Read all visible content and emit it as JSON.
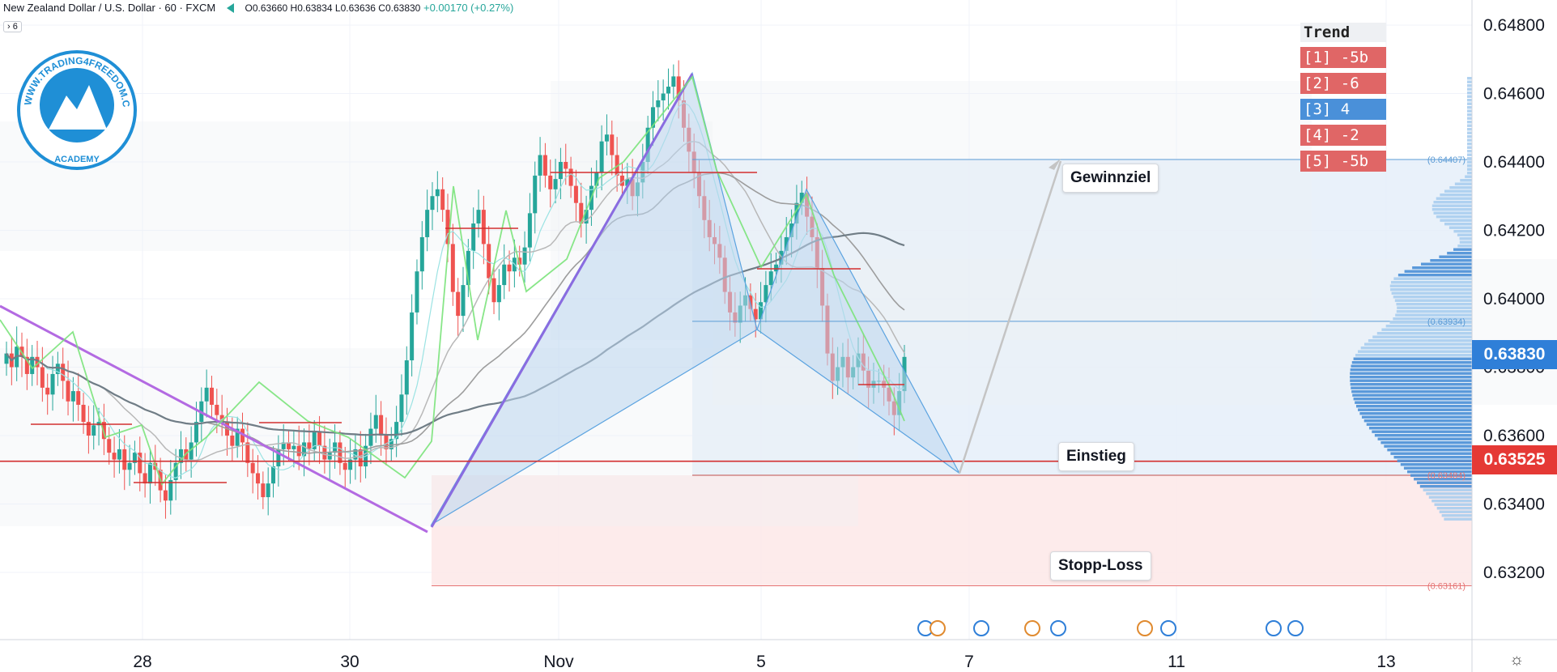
{
  "header": {
    "symbol": "New Zealand Dollar / U.S. Dollar · 60 · FXCM",
    "ohlc": "O0.63660 H0.63834 L0.63636 C0.63830",
    "change": "+0.00170 (+0.27%)",
    "indicator_badge": "› 6"
  },
  "logo": {
    "text": "WWW.TRADING4FREEDOM.COM",
    "sub": "ACADEMY"
  },
  "trend_table": {
    "title": "Trend",
    "rows": [
      {
        "label": "[1] -5b",
        "color": "#e06666"
      },
      {
        "label": "[2] -6",
        "color": "#e06666"
      },
      {
        "label": "[3] 4",
        "color": "#4a90d9"
      },
      {
        "label": "[4] -2",
        "color": "#e06666"
      },
      {
        "label": "[5] -5b",
        "color": "#e06666"
      }
    ]
  },
  "annotations": {
    "target": "Gewinnziel",
    "entry": "Einstieg",
    "stop": "Stopp-Loss"
  },
  "price_badges": {
    "last": "0.63830",
    "entry": "0.63525"
  },
  "colors": {
    "up": "#26a69a",
    "down": "#ef5350",
    "pattern_fill": "#bcd6ef",
    "profit_zone": "#e3eef9",
    "loss_zone": "#fde9e9",
    "entry_line": "#d32f2f",
    "last_badge": "#2f7fd8",
    "entry_badge": "#e53935",
    "zigzag_purple": "#b36ae2",
    "zigzag_green": "#7be37b"
  },
  "chart_data": {
    "type": "candlestick",
    "title": "New Zealand Dollar / U.S. Dollar · 60 · FXCM",
    "x_ticks": [
      "28",
      "30",
      "Nov",
      "5",
      "7",
      "11",
      "13"
    ],
    "y_ticks": [
      "0.64800",
      "0.64600",
      "0.64400",
      "0.64200",
      "0.64000",
      "0.63800",
      "0.63600",
      "0.63400",
      "0.63200"
    ],
    "ylim": [
      0.6305,
      0.6489
    ],
    "levels": {
      "target": 0.64407,
      "pattern_D": 0.63934,
      "entry": 0.63525,
      "entry_zone": 0.63484,
      "stop": 0.63161
    },
    "level_labels": {
      "target": "(0.64407)",
      "pattern_D": "(0.63934)",
      "entry_zone": "(0.63484)",
      "stop": "(0.63161)"
    },
    "harmonic_pattern": {
      "X": 0.6334,
      "A": 0.6466,
      "B": 0.6391,
      "C": 0.6432,
      "D": 0.6349
    },
    "closes": [
      0.6384,
      0.638,
      0.6386,
      0.6383,
      0.6378,
      0.6383,
      0.638,
      0.6374,
      0.6372,
      0.6378,
      0.6381,
      0.6376,
      0.637,
      0.6373,
      0.6369,
      0.6364,
      0.636,
      0.6363,
      0.6364,
      0.6359,
      0.6355,
      0.6353,
      0.6356,
      0.635,
      0.6352,
      0.6355,
      0.6349,
      0.6346,
      0.6352,
      0.635,
      0.6344,
      0.6341,
      0.6347,
      0.6352,
      0.6356,
      0.6353,
      0.6358,
      0.6364,
      0.637,
      0.6374,
      0.6369,
      0.6366,
      0.6364,
      0.636,
      0.6357,
      0.6362,
      0.6358,
      0.6352,
      0.6349,
      0.6346,
      0.6342,
      0.6346,
      0.6351,
      0.6356,
      0.6358,
      0.6356,
      0.6357,
      0.6354,
      0.6358,
      0.6356,
      0.6361,
      0.6357,
      0.6353,
      0.6355,
      0.6358,
      0.6352,
      0.635,
      0.6353,
      0.6356,
      0.6351,
      0.6357,
      0.6362,
      0.6366,
      0.636,
      0.6356,
      0.6359,
      0.6364,
      0.6372,
      0.6382,
      0.6396,
      0.6408,
      0.6418,
      0.6426,
      0.643,
      0.6432,
      0.6426,
      0.6416,
      0.6402,
      0.6395,
      0.6404,
      0.6414,
      0.6422,
      0.6426,
      0.6416,
      0.6406,
      0.6399,
      0.6404,
      0.641,
      0.6408,
      0.6412,
      0.641,
      0.6415,
      0.6425,
      0.6436,
      0.6442,
      0.6436,
      0.6432,
      0.6435,
      0.644,
      0.6438,
      0.6433,
      0.6428,
      0.6422,
      0.6426,
      0.6433,
      0.6437,
      0.6446,
      0.6448,
      0.6442,
      0.6436,
      0.6433,
      0.6435,
      0.643,
      0.6434,
      0.644,
      0.645,
      0.6456,
      0.6458,
      0.646,
      0.6462,
      0.6465,
      0.6458,
      0.645,
      0.6443,
      0.6437,
      0.643,
      0.6423,
      0.6418,
      0.6416,
      0.6412,
      0.6402,
      0.6396,
      0.6393,
      0.6398,
      0.6401,
      0.6397,
      0.6394,
      0.6399,
      0.6404,
      0.6408,
      0.641,
      0.6414,
      0.6418,
      0.6422,
      0.6428,
      0.6431,
      0.6424,
      0.6418,
      0.6409,
      0.6398,
      0.6384,
      0.6376,
      0.638,
      0.6383,
      0.6377,
      0.638,
      0.6384,
      0.6379,
      0.6374,
      0.6376,
      0.6376,
      0.6374,
      0.637,
      0.6366,
      0.6373,
      0.6383
    ]
  }
}
